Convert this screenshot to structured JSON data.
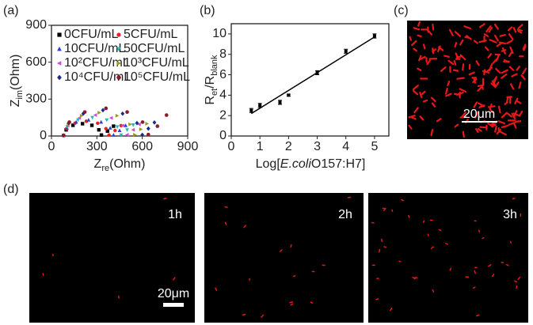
{
  "panel_labels": [
    "(a)",
    "(b)",
    "(c)",
    "(d)"
  ],
  "chart_data": [
    {
      "type": "scatter",
      "xlabel": [
        "Z",
        "re",
        "(Ohm)"
      ],
      "ylabel": [
        "Z",
        "im",
        "(Ohm)"
      ],
      "xlim": [
        0,
        900
      ],
      "xticks": [
        0,
        300,
        600,
        900
      ],
      "ylim": [
        0,
        900
      ],
      "yticks": [
        0,
        300,
        600,
        900
      ],
      "series": [
        {
          "name": "0CFU/mL",
          "color": "#000000",
          "marker": "square",
          "x": [
            80,
            97,
            142,
            205,
            267,
            313,
            330,
            370,
            410
          ],
          "values": [
            5,
            50,
            87,
            100,
            87,
            50,
            8,
            40,
            80
          ]
        },
        {
          "name": "5CFU/mL",
          "color": "#e8202a",
          "marker": "circle",
          "x": [
            80,
            100,
            155,
            230,
            305,
            360,
            380,
            420,
            460
          ],
          "values": [
            5,
            60,
            104,
            120,
            104,
            60,
            8,
            45,
            85
          ]
        },
        {
          "name": "10CFU/mL",
          "color": "#2a3fd8",
          "marker": "triangle-up",
          "x": [
            80,
            102,
            163,
            245,
            328,
            388,
            410,
            450,
            490
          ],
          "values": [
            5,
            65,
            113,
            130,
            113,
            65,
            8,
            45,
            85
          ]
        },
        {
          "name": "50CFU/mL",
          "color": "#2bb5b5",
          "marker": "triangle-down",
          "x": [
            80,
            105,
            175,
            270,
            365,
            435,
            460,
            500,
            540
          ],
          "values": [
            5,
            75,
            130,
            150,
            130,
            75,
            8,
            50,
            90
          ]
        },
        {
          "name": "10²CFU/mL",
          "color": "#d24ad2",
          "marker": "triangle-left",
          "x": [
            80,
            108,
            185,
            290,
            395,
            472,
            500,
            540,
            580
          ],
          "values": [
            5,
            85,
            147,
            170,
            147,
            85,
            10,
            50,
            95
          ]
        },
        {
          "name": "10³CFU/mL",
          "color": "#9a9a1a",
          "marker": "triangle-right",
          "x": [
            80,
            111,
            198,
            315,
            433,
            519,
            550,
            590,
            630
          ],
          "values": [
            5,
            95,
            165,
            190,
            165,
            95,
            10,
            55,
            100
          ]
        },
        {
          "name": "10⁴CFU/mL",
          "color": "#1a2a8a",
          "marker": "diamond",
          "x": [
            80,
            115,
            210,
            340,
            470,
            565,
            600,
            640,
            680
          ],
          "values": [
            5,
            105,
            182,
            210,
            182,
            105,
            10,
            60,
            110
          ]
        },
        {
          "name": "10⁵CFU/mL",
          "color": "#8a1a2a",
          "marker": "hexagon",
          "x": [
            80,
            118,
            220,
            360,
            500,
            602,
            640,
            700,
            760
          ],
          "values": [
            5,
            113,
            195,
            225,
            195,
            113,
            12,
            80,
            170
          ]
        }
      ]
    },
    {
      "type": "errorbar",
      "xlabel": [
        "Log[",
        "E.coli",
        "O157:H7]"
      ],
      "ylabel": [
        "R",
        "et",
        "/R",
        "blank"
      ],
      "xlim": [
        0,
        5.5
      ],
      "xticks": [
        0,
        1,
        2,
        3,
        4,
        5
      ],
      "ylim": [
        0,
        11
      ],
      "yticks": [
        0,
        2,
        4,
        6,
        8,
        10
      ],
      "color": "#000000",
      "points": {
        "x": [
          0.7,
          1,
          1.7,
          2,
          3,
          4,
          5
        ],
        "values": [
          2.5,
          3.0,
          3.3,
          4.0,
          6.2,
          8.3,
          9.8
        ],
        "errors": [
          0.2,
          0.2,
          0.2,
          0.1,
          0.2,
          0.2,
          0.2
        ]
      },
      "fit": {
        "x": [
          0.7,
          5
        ],
        "values": [
          2.2,
          9.7
        ]
      }
    }
  ],
  "micrographs": {
    "c": {
      "scale_bar": "20μm"
    },
    "d": [
      {
        "time": "1h"
      },
      {
        "time": "2h"
      },
      {
        "time": "3h"
      }
    ],
    "d_scale_bar": "20μm"
  }
}
